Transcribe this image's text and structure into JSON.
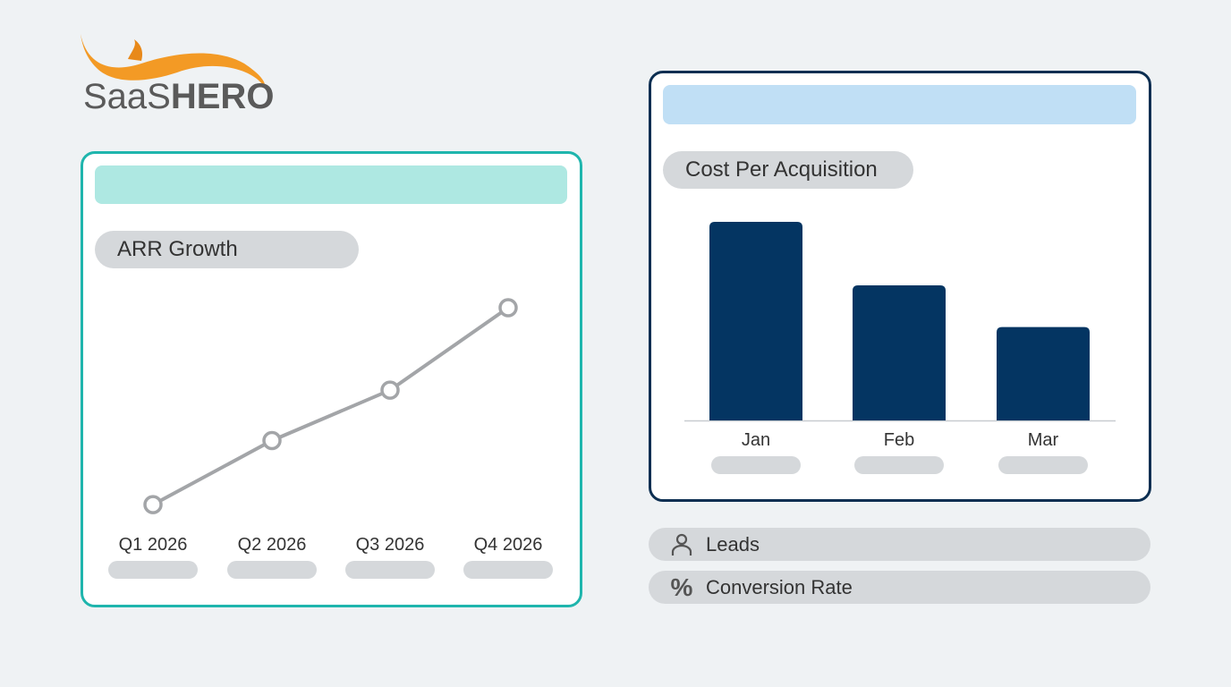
{
  "logo": {
    "text_light": "Saa",
    "text_s": "S",
    "text_bold": "HERO",
    "colors": {
      "swoosh": "#f39a25",
      "text": "#5a5a5a"
    }
  },
  "left_card": {
    "title": "ARR Growth",
    "border_color": "#1fb5ad",
    "header_color": "#aee8e2"
  },
  "right_card": {
    "title": "Cost Per Acquisition",
    "border_color": "#0d2f52",
    "header_color": "#c0dff5"
  },
  "metrics": [
    {
      "icon": "person-icon",
      "label": "Leads"
    },
    {
      "icon": "percent-icon",
      "label": "Conversion Rate"
    }
  ],
  "chart_data": [
    {
      "type": "line",
      "categories": [
        "Q1 2026",
        "Q2 2026",
        "Q3 2026",
        "Q4 2026"
      ],
      "values": [
        14,
        42,
        64,
        100
      ],
      "color": "#a3a5a8",
      "grid": false
    },
    {
      "type": "bar",
      "categories": [
        "Jan",
        "Feb",
        "Mar"
      ],
      "values": [
        100,
        68,
        47
      ],
      "color": "#043562",
      "grid": false
    }
  ]
}
